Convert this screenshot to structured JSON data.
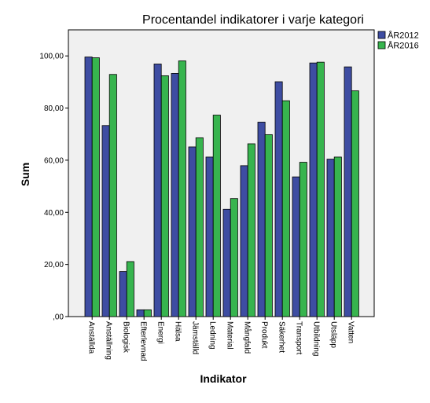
{
  "chart_data": {
    "type": "bar",
    "title": "Procentandel indikatorer i varje kategori",
    "xlabel": "Indikator",
    "ylabel": "Sum",
    "ylim": [
      0,
      110
    ],
    "yticks": [
      0,
      20,
      40,
      60,
      80,
      100
    ],
    "ytick_labels": [
      ",00",
      "20,00",
      "40,00",
      "60,00",
      "80,00",
      "100,00"
    ],
    "grid": false,
    "legend_position": "top-right",
    "categories": [
      "Anställda",
      "Anställning",
      "Biologisk",
      "Efterlevnad",
      "Energi",
      "Hälsa",
      "Jämställd",
      "Ledning",
      "Material",
      "Mångfald",
      "Produkt",
      "Säkerhet",
      "Transport",
      "Utbildning",
      "Utsläpp",
      "Vatten"
    ],
    "series": [
      {
        "name": "ÅR2012",
        "color": "#3e4da2",
        "values": [
          99.6,
          73.3,
          17.3,
          2.6,
          96.9,
          93.3,
          65.1,
          61.2,
          41.2,
          57.9,
          74.6,
          90.1,
          53.6,
          97.3,
          60.4,
          95.8
        ]
      },
      {
        "name": "ÅR2016",
        "color": "#37b44e",
        "values": [
          99.3,
          92.9,
          21.1,
          2.6,
          92.4,
          98.1,
          68.6,
          77.3,
          45.3,
          66.3,
          69.8,
          82.8,
          59.2,
          97.6,
          61.2,
          86.6
        ]
      }
    ],
    "plot_background": "#f0f0f0"
  }
}
